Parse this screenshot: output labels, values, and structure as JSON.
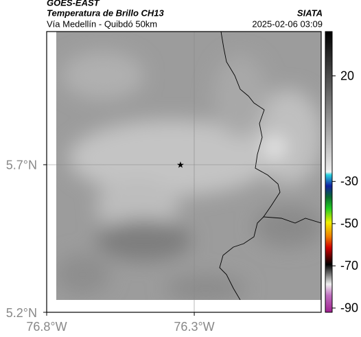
{
  "header": {
    "source": "GOES-EAST",
    "product": "Temperatura de Brillo CH13",
    "organization": "SIATA",
    "region": "Vía Medellín - Quibdó 50km",
    "timestamp": "2025-02-06 03:09"
  },
  "map": {
    "lonlim": [
      -76.8,
      -75.87
    ],
    "latlim": [
      5.2,
      6.151
    ],
    "lat_ticks": [
      {
        "value": 5.7,
        "label": "5.7°N"
      },
      {
        "value": 5.2,
        "label": "5.2°N"
      }
    ],
    "lon_ticks": [
      {
        "value": -76.8,
        "label": "76.8°W"
      },
      {
        "value": -76.3,
        "label": "76.3°W"
      }
    ]
  },
  "colorbar": {
    "lim": [
      -92,
      41
    ],
    "ticks": [
      20,
      -30,
      -50,
      -70,
      -90
    ]
  }
}
